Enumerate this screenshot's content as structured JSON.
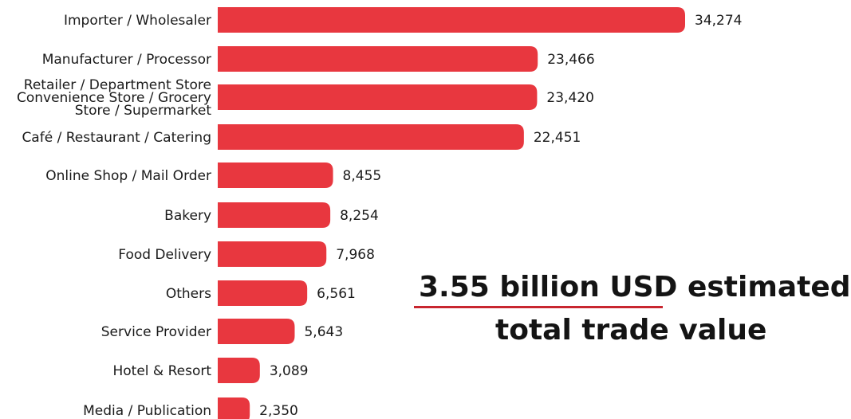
{
  "chart_data": {
    "type": "bar",
    "orientation": "horizontal",
    "categories": [
      [
        "Importer / Wholesaler"
      ],
      [
        "Manufacturer / Processor"
      ],
      [
        "Retailer / Department Store",
        "Convenience Store / Grocery",
        "Store / Supermarket"
      ],
      [
        "Café / Restaurant / Catering"
      ],
      [
        "Online Shop / Mail Order"
      ],
      [
        "Bakery"
      ],
      [
        "Food Delivery"
      ],
      [
        "Others"
      ],
      [
        "Service Provider"
      ],
      [
        "Hotel & Resort"
      ],
      [
        "Media / Publication"
      ]
    ],
    "values": [
      34274,
      23466,
      23420,
      22451,
      8455,
      8254,
      7968,
      6561,
      5643,
      3089,
      2350
    ],
    "value_labels": [
      "34,274",
      "23,466",
      "23,420",
      "22,451",
      "8,455",
      "8,254",
      "7,968",
      "6,561",
      "5,643",
      "3,089",
      "2,350"
    ],
    "bar_color": "#e8373f",
    "xlim": [
      0,
      34274
    ],
    "grid": false,
    "legend": "none"
  },
  "callout": {
    "line1": "3.55 billion USD estimated",
    "line2": "total trade value",
    "underline_color": "#c8262f"
  }
}
